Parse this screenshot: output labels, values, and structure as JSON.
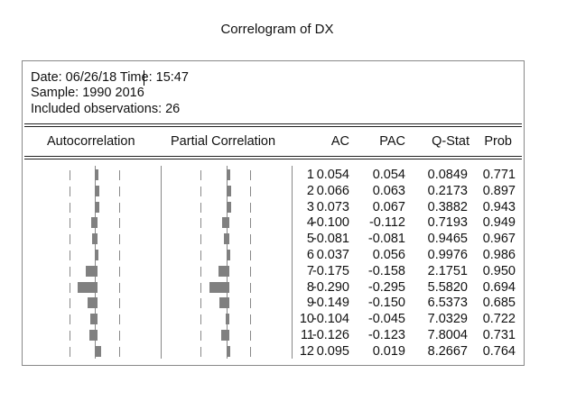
{
  "title": "Correlogram of DX",
  "info": {
    "date": "Date: 06/26/18   Time: 15:47",
    "sample": "Sample: 1990 2016",
    "obs": "Included observations: 26"
  },
  "headers": {
    "ac_plot": "Autocorrelation",
    "pac_plot": "Partial Correlation",
    "ac": "AC",
    "pac": "PAC",
    "q": "Q-Stat",
    "prob": "Prob"
  },
  "rows": [
    {
      "lag": "1",
      "ac": "0.054",
      "pac": "0.054",
      "q": "0.0849",
      "prob": "0.771"
    },
    {
      "lag": "2",
      "ac": "0.066",
      "pac": "0.063",
      "q": "0.2173",
      "prob": "0.897"
    },
    {
      "lag": "3",
      "ac": "0.073",
      "pac": "0.067",
      "q": "0.3882",
      "prob": "0.943"
    },
    {
      "lag": "4",
      "ac": "-0.100",
      "pac": "-0.112",
      "q": "0.7193",
      "prob": "0.949"
    },
    {
      "lag": "5",
      "ac": "-0.081",
      "pac": "-0.081",
      "q": "0.9465",
      "prob": "0.967"
    },
    {
      "lag": "6",
      "ac": "0.037",
      "pac": "0.056",
      "q": "0.9976",
      "prob": "0.986"
    },
    {
      "lag": "7",
      "ac": "-0.175",
      "pac": "-0.158",
      "q": "2.1751",
      "prob": "0.950"
    },
    {
      "lag": "8",
      "ac": "-0.290",
      "pac": "-0.295",
      "q": "5.5820",
      "prob": "0.694"
    },
    {
      "lag": "9",
      "ac": "-0.149",
      "pac": "-0.150",
      "q": "6.5373",
      "prob": "0.685"
    },
    {
      "lag": "10",
      "ac": "-0.104",
      "pac": "-0.045",
      "q": "7.0329",
      "prob": "0.722"
    },
    {
      "lag": "11",
      "ac": "-0.126",
      "pac": "-0.123",
      "q": "7.8004",
      "prob": "0.731"
    },
    {
      "lag": "12",
      "ac": "0.095",
      "pac": "0.019",
      "q": "8.2667",
      "prob": "0.764"
    }
  ]
}
